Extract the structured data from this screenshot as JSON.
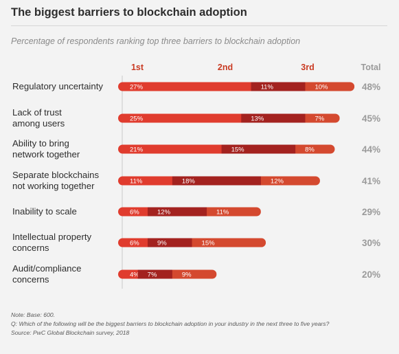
{
  "title": "The biggest barriers to blockchain adoption",
  "subtitle": "Percentage of respondents ranking top three barriers to blockchain adoption",
  "colors": {
    "first": "#e03c2e",
    "second": "#a3221f",
    "third": "#d4492f",
    "header": "#c93a22",
    "total": "#9a9a9a"
  },
  "chart_data": {
    "type": "bar",
    "orientation": "horizontal",
    "stacked": true,
    "column_headers": [
      "1st",
      "2nd",
      "3rd",
      "Total"
    ],
    "categories": [
      [
        "Regulatory uncertainty"
      ],
      [
        "Lack of trust",
        "among users"
      ],
      [
        "Ability to bring",
        "network together"
      ],
      [
        "Separate blockchains",
        "not working together"
      ],
      [
        "Inability to scale"
      ],
      [
        "Intellectual property",
        "concerns"
      ],
      [
        "Audit/compliance",
        "concerns"
      ]
    ],
    "series": [
      {
        "name": "1st",
        "values": [
          27,
          25,
          21,
          11,
          6,
          6,
          4
        ]
      },
      {
        "name": "2nd",
        "values": [
          11,
          13,
          15,
          18,
          12,
          9,
          7
        ]
      },
      {
        "name": "3rd",
        "values": [
          10,
          7,
          8,
          12,
          11,
          15,
          9
        ]
      }
    ],
    "totals": [
      "48%",
      "45%",
      "44%",
      "41%",
      "29%",
      "30%",
      "20%"
    ],
    "value_suffix": "%"
  },
  "notes": [
    "Note: Base: 600.",
    "Q: Which of the following will be the biggest barriers to blockchain adoption in your industry in the next three to five years?",
    "Source: PwC Global Blockchain survey, 2018"
  ]
}
